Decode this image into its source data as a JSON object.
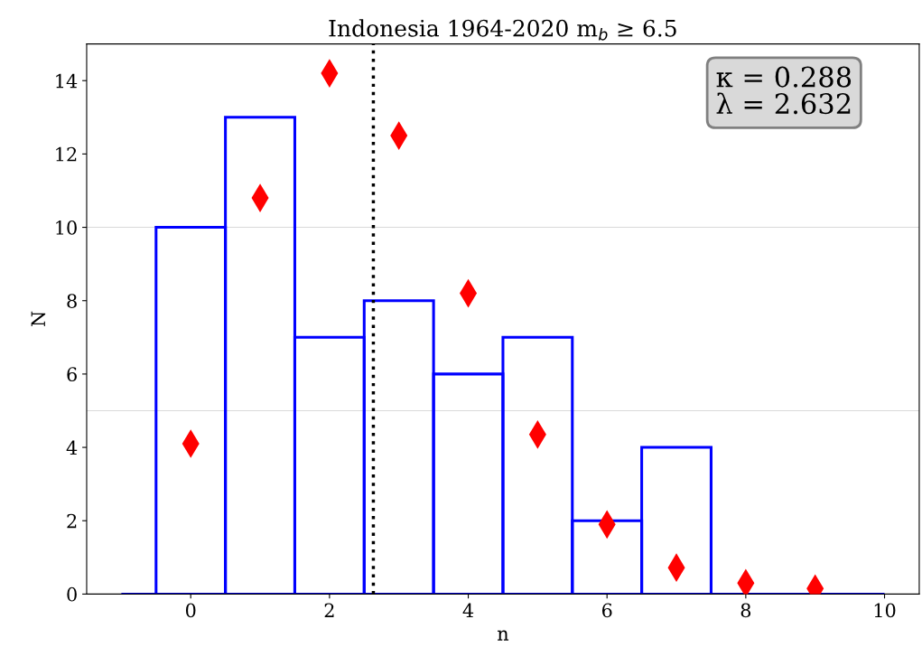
{
  "chart_data": {
    "type": "histogram",
    "title": "Indonesia 1964-2020 m$_{b}$ ≥ 6.5",
    "xlabel": "n",
    "ylabel": "N",
    "bins": [
      -1,
      -0.5,
      0.5,
      1.5,
      2.5,
      3.5,
      4.5,
      5.5,
      6.5,
      7.5,
      10
    ],
    "values": [
      0,
      10,
      13,
      7,
      8,
      6,
      7,
      2,
      4,
      0
    ],
    "color": "#0000ff",
    "series": [
      {
        "type": "scatter",
        "x": [
          0,
          1,
          2,
          3,
          4,
          5,
          6,
          7,
          8,
          9
        ],
        "values": [
          4.1,
          10.8,
          14.2,
          12.5,
          8.2,
          4.35,
          1.9,
          0.72,
          0.3,
          0.15
        ],
        "color": "#ff0000",
        "marker": "diamond"
      }
    ],
    "xlim": [
      -1.5,
      10.5
    ],
    "ylim": [
      0,
      15
    ],
    "xticks": [
      0,
      2,
      4,
      6,
      8,
      10
    ],
    "yticks": [
      0,
      2,
      4,
      6,
      8,
      10,
      12,
      14
    ],
    "ref_lines": [
      {
        "axis": "x",
        "value": 2.632,
        "color": "#000000",
        "line_style": "dotted"
      },
      {
        "axis": "y",
        "value": 5,
        "color": "#d9d9d9",
        "line_style": "solid"
      },
      {
        "axis": "y",
        "value": 10,
        "color": "#d9d9d9",
        "line_style": "solid"
      }
    ],
    "annotations": [
      "κ = 0.288\nλ = 2.632"
    ]
  }
}
